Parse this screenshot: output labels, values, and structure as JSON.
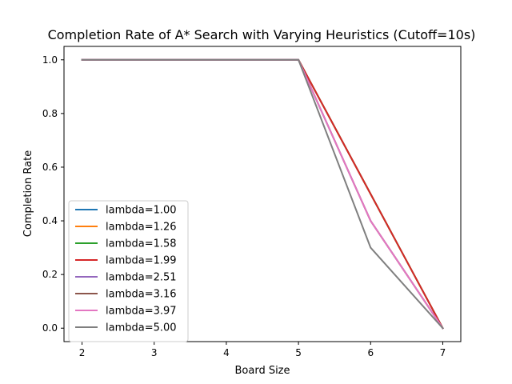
{
  "chart_data": {
    "type": "line",
    "title": "Completion Rate of A* Search with Varying Heuristics (Cutoff=10s)",
    "xlabel": "Board Size",
    "ylabel": "Completion Rate",
    "x": [
      2,
      3,
      4,
      5,
      6,
      7
    ],
    "xlim": [
      1.75,
      7.25
    ],
    "ylim": [
      -0.05,
      1.05
    ],
    "xticks": [
      "2",
      "3",
      "4",
      "5",
      "6",
      "7"
    ],
    "yticks": [
      "0.0",
      "0.2",
      "0.4",
      "0.6",
      "0.8",
      "1.0"
    ],
    "grid": false,
    "legend_position": "lower-left",
    "series": [
      {
        "name": "lambda=1.00",
        "color": "#1f77b4",
        "values": [
          1.0,
          1.0,
          1.0,
          1.0,
          0.5,
          0.0
        ]
      },
      {
        "name": "lambda=1.26",
        "color": "#ff7f0e",
        "values": [
          1.0,
          1.0,
          1.0,
          1.0,
          0.5,
          0.0
        ]
      },
      {
        "name": "lambda=1.58",
        "color": "#2ca02c",
        "values": [
          1.0,
          1.0,
          1.0,
          1.0,
          0.5,
          0.0
        ]
      },
      {
        "name": "lambda=1.99",
        "color": "#d62728",
        "values": [
          1.0,
          1.0,
          1.0,
          1.0,
          0.5,
          0.0
        ]
      },
      {
        "name": "lambda=2.51",
        "color": "#9467bd",
        "values": [
          1.0,
          1.0,
          1.0,
          1.0,
          0.4,
          0.0
        ]
      },
      {
        "name": "lambda=3.16",
        "color": "#8c564b",
        "values": [
          1.0,
          1.0,
          1.0,
          1.0,
          0.4,
          0.0
        ]
      },
      {
        "name": "lambda=3.97",
        "color": "#e377c2",
        "values": [
          1.0,
          1.0,
          1.0,
          1.0,
          0.4,
          0.0
        ]
      },
      {
        "name": "lambda=5.00",
        "color": "#7f7f7f",
        "values": [
          1.0,
          1.0,
          1.0,
          1.0,
          0.3,
          0.0
        ]
      }
    ]
  }
}
